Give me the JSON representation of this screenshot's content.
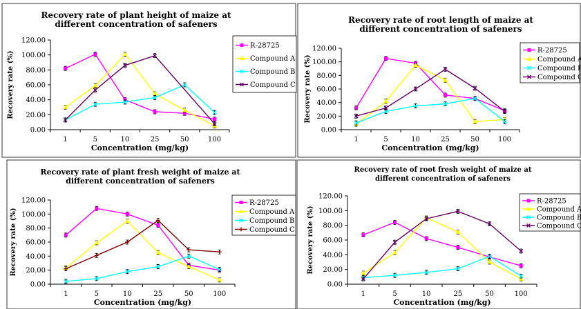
{
  "chart_data": [
    {
      "type": "line",
      "title": [
        "Recovery rate of plant height of maize at",
        "different concentration of safeners"
      ],
      "xlabel": "Concentration (mg/kg)",
      "ylabel": "Recovery rate (%)",
      "categories": [
        "1",
        "5",
        "10",
        "25",
        "50",
        "100"
      ],
      "y_ticks": [
        "0.00",
        "20.00",
        "40.00",
        "60.00",
        "80.00",
        "100.00",
        "120.00"
      ],
      "ylim": [
        0,
        120
      ],
      "grid": false,
      "legend_position": "top-right",
      "series": [
        {
          "name": "R-28725",
          "color": "#ff00ff",
          "marker": "square",
          "values": [
            82,
            101,
            40,
            24,
            22,
            14
          ]
        },
        {
          "name": "Compound A",
          "color": "#ffff00",
          "marker": "triangle",
          "values": [
            30,
            59,
            101,
            48,
            26,
            5
          ]
        },
        {
          "name": "Compound B",
          "color": "#00ffff",
          "marker": "x",
          "values": [
            13,
            34,
            37,
            43,
            60,
            23
          ]
        },
        {
          "name": "Compound C",
          "color": "#660066",
          "marker": "x",
          "values": [
            13,
            53,
            86,
            99,
            null,
            8
          ]
        }
      ]
    },
    {
      "type": "line",
      "title": [
        "Recovery rate of root length of maize at",
        "different concentration of safeners"
      ],
      "xlabel": "Concentration (mg/kg)",
      "ylabel": "Recovery rate (%)",
      "categories": [
        "1",
        "5",
        "10",
        "25",
        "50",
        "100"
      ],
      "y_ticks": [
        "0.00",
        "20.00",
        "40.00",
        "60.00",
        "80.00",
        "100.00",
        "120.00"
      ],
      "ylim": [
        0,
        120
      ],
      "grid": false,
      "legend_position": "top-right",
      "series": [
        {
          "name": "R-28725",
          "color": "#ff00ff",
          "marker": "square",
          "values": [
            32,
            105,
            98,
            51,
            46,
            28
          ]
        },
        {
          "name": "Compound A",
          "color": "#ffff00",
          "marker": "triangle",
          "values": [
            8,
            42,
            95,
            73,
            12,
            15
          ]
        },
        {
          "name": "Compound B",
          "color": "#00ffff",
          "marker": "x",
          "values": [
            10,
            27,
            35,
            38,
            46,
            12
          ]
        },
        {
          "name": "Compound C",
          "color": "#660066",
          "marker": "x",
          "values": [
            20,
            32,
            60,
            89,
            61,
            27
          ]
        }
      ]
    },
    {
      "type": "line",
      "title": [
        "Recovery rate of plant fresh weight of maize at",
        "different concentration of safeners"
      ],
      "xlabel": "Concentration (mg/kg)",
      "ylabel": "Recovery rate (%)",
      "categories": [
        "1",
        "5",
        "10",
        "25",
        "50",
        "100"
      ],
      "y_ticks": [
        "0.00",
        "20.00",
        "40.00",
        "60.00",
        "80.00",
        "100.00",
        "120.00"
      ],
      "ylim": [
        0,
        120
      ],
      "grid": false,
      "legend_position": "right",
      "series": [
        {
          "name": "R-28725",
          "color": "#ff00ff",
          "marker": "square",
          "values": [
            70,
            108,
            100,
            84,
            27,
            20
          ]
        },
        {
          "name": "Compound A",
          "color": "#ffff00",
          "marker": "triangle",
          "values": [
            23,
            59,
            90,
            45,
            25,
            6
          ]
        },
        {
          "name": "Compound B",
          "color": "#00ffff",
          "marker": "x",
          "values": [
            4,
            8,
            18,
            25,
            40,
            21
          ]
        },
        {
          "name": "Compound C",
          "color": "#800000",
          "marker": "tick",
          "values": [
            22,
            41,
            60,
            91,
            49,
            46
          ]
        }
      ]
    },
    {
      "type": "line",
      "title": [
        "Recovery rate of root fresh weight of maize at",
        "different concentration of safeners"
      ],
      "xlabel": "Concentration (mg/kg)",
      "ylabel": "Recovery rate (%)",
      "categories": [
        "1",
        "5",
        "10",
        "25",
        "50",
        "100"
      ],
      "y_ticks": [
        "0.00",
        "20.00",
        "40.00",
        "60.00",
        "80.00",
        "100.00",
        "120.00"
      ],
      "ylim": [
        0,
        120
      ],
      "grid": false,
      "legend_position": "top-right",
      "series": [
        {
          "name": "R-28725",
          "color": "#ff00ff",
          "marker": "square",
          "values": [
            67,
            84,
            62,
            50,
            37,
            25
          ]
        },
        {
          "name": "Compound A",
          "color": "#ffff00",
          "marker": "triangle",
          "values": [
            15,
            43,
            90,
            71,
            30,
            7
          ]
        },
        {
          "name": "Compound B",
          "color": "#00ffff",
          "marker": "x",
          "values": [
            9,
            12,
            16,
            21,
            38,
            11
          ]
        },
        {
          "name": "Compound C",
          "color": "#660066",
          "marker": "x",
          "values": [
            7,
            57,
            89,
            99,
            82,
            45
          ]
        }
      ]
    }
  ]
}
